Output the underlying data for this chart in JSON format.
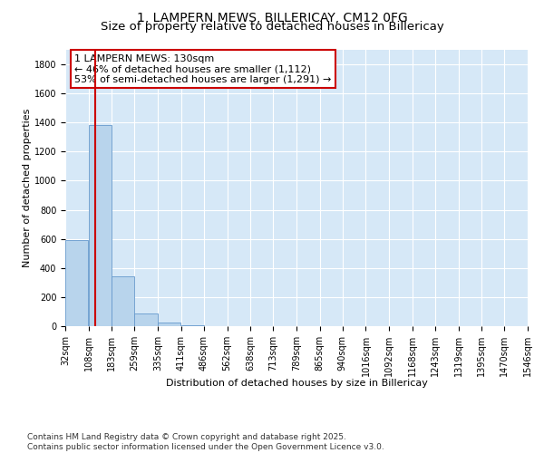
{
  "title1": "1, LAMPERN MEWS, BILLERICAY, CM12 0FG",
  "title2": "Size of property relative to detached houses in Billericay",
  "xlabel": "Distribution of detached houses by size in Billericay",
  "ylabel": "Number of detached properties",
  "bg_color": "#d6e8f7",
  "bar_color": "#b8d4ec",
  "bar_edge_color": "#6699cc",
  "property_line_color": "#cc0000",
  "annotation_line1": "1 LAMPERN MEWS: 130sqm",
  "annotation_line2": "← 46% of detached houses are smaller (1,112)",
  "annotation_line3": "53% of semi-detached houses are larger (1,291) →",
  "annotation_box_color": "#cc0000",
  "property_size": 130,
  "bins": [
    32,
    108,
    183,
    259,
    335,
    411,
    486,
    562,
    638,
    713,
    789,
    865,
    940,
    1016,
    1092,
    1168,
    1243,
    1319,
    1395,
    1470,
    1546
  ],
  "bin_labels": [
    "32sqm",
    "108sqm",
    "183sqm",
    "259sqm",
    "335sqm",
    "411sqm",
    "486sqm",
    "562sqm",
    "638sqm",
    "713sqm",
    "789sqm",
    "865sqm",
    "940sqm",
    "1016sqm",
    "1092sqm",
    "1168sqm",
    "1243sqm",
    "1319sqm",
    "1395sqm",
    "1470sqm",
    "1546sqm"
  ],
  "bar_heights": [
    590,
    1380,
    340,
    90,
    25,
    5,
    2,
    1,
    0,
    0,
    0,
    0,
    0,
    0,
    0,
    0,
    0,
    0,
    0,
    0
  ],
  "ylim": [
    0,
    1900
  ],
  "yticks": [
    0,
    200,
    400,
    600,
    800,
    1000,
    1200,
    1400,
    1600,
    1800
  ],
  "footer": "Contains HM Land Registry data © Crown copyright and database right 2025.\nContains public sector information licensed under the Open Government Licence v3.0.",
  "title_fontsize": 10,
  "subtitle_fontsize": 9.5,
  "axis_label_fontsize": 8,
  "tick_fontsize": 7,
  "footer_fontsize": 6.5,
  "annotation_fontsize": 8
}
